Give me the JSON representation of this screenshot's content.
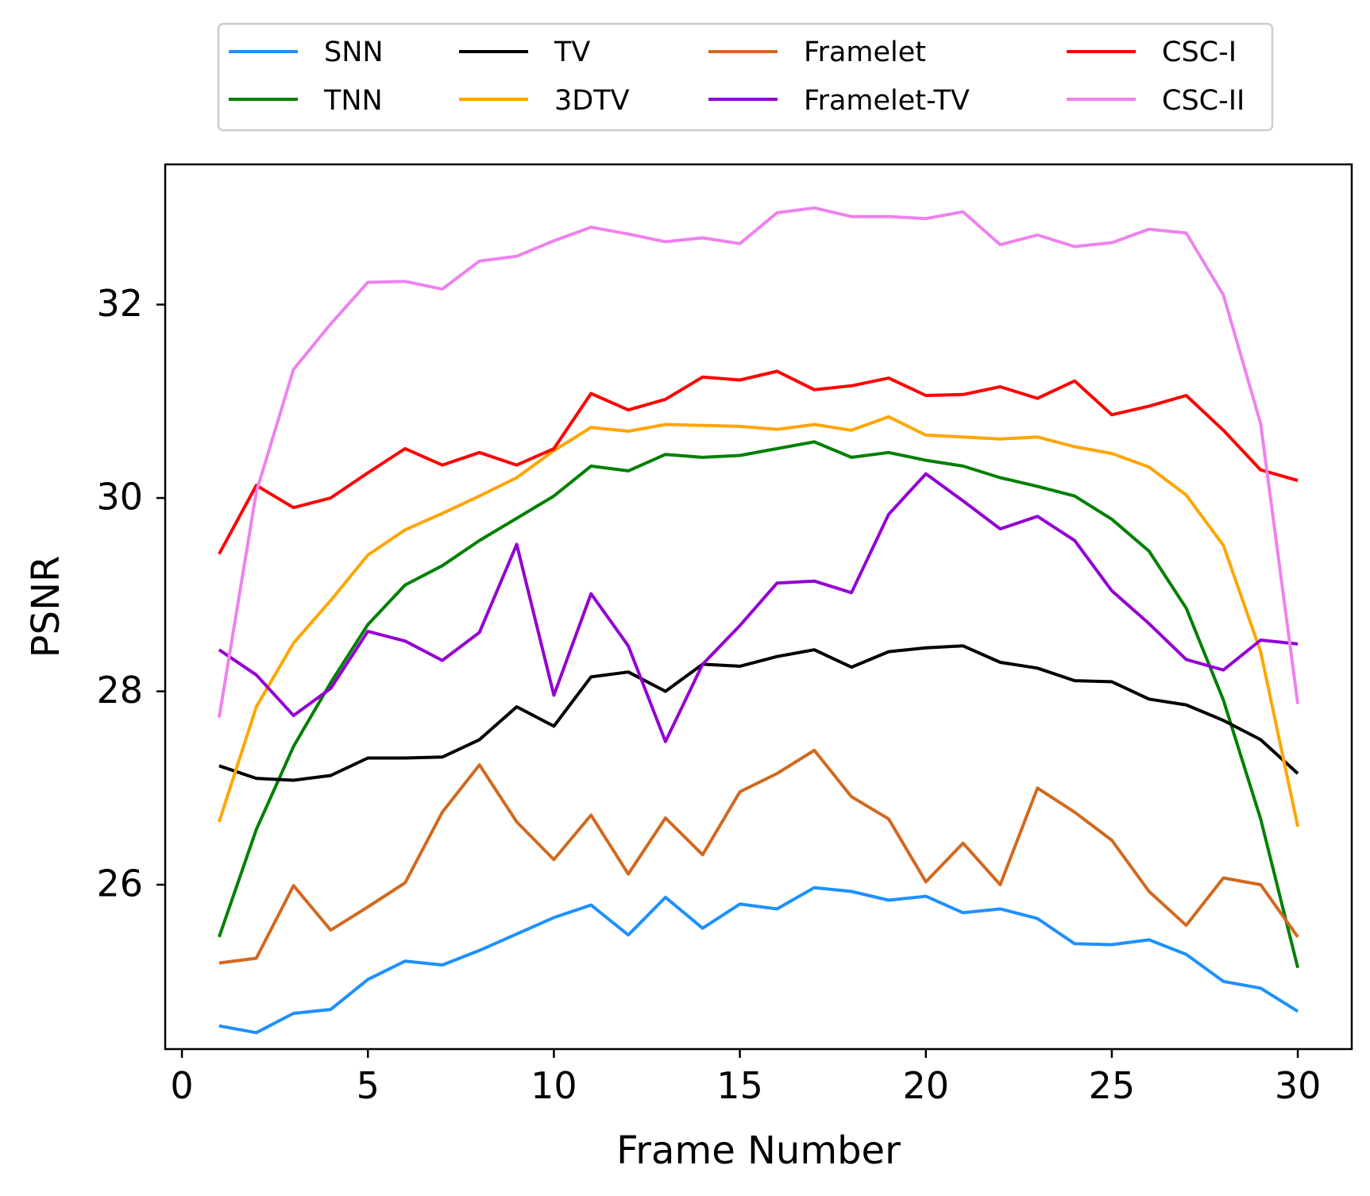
{
  "chart_data": {
    "type": "line",
    "title": "",
    "xlabel": "Frame Number",
    "ylabel": "PSNR",
    "xlim": [
      -0.45,
      31.45
    ],
    "ylim": [
      24.3,
      33.45
    ],
    "xticks": [
      0,
      5,
      10,
      15,
      20,
      25,
      30
    ],
    "yticks": [
      26,
      28,
      30,
      32
    ],
    "grid": false,
    "legend_position": "top-center",
    "legend_columns": 4,
    "x": [
      1,
      2,
      3,
      4,
      5,
      6,
      7,
      8,
      9,
      10,
      11,
      12,
      13,
      14,
      15,
      16,
      17,
      18,
      19,
      20,
      21,
      22,
      23,
      24,
      25,
      26,
      27,
      28,
      29,
      30
    ],
    "series": [
      {
        "name": "SNN",
        "color": "#1e90ff",
        "values": [
          24.54,
          24.47,
          24.67,
          24.71,
          25.02,
          25.21,
          25.17,
          25.32,
          25.49,
          25.66,
          25.79,
          25.48,
          25.87,
          25.55,
          25.8,
          25.75,
          25.97,
          25.93,
          25.84,
          25.88,
          25.71,
          25.75,
          25.65,
          25.39,
          25.38,
          25.43,
          25.28,
          25.0,
          24.93,
          24.69
        ]
      },
      {
        "name": "TNN",
        "color": "#008000",
        "values": [
          25.46,
          26.57,
          27.43,
          28.09,
          28.69,
          29.1,
          29.3,
          29.56,
          29.79,
          30.02,
          30.33,
          30.28,
          30.45,
          30.42,
          30.44,
          30.51,
          30.58,
          30.42,
          30.47,
          30.39,
          30.33,
          30.21,
          30.12,
          30.02,
          29.78,
          29.45,
          28.86,
          27.91,
          26.68,
          25.14
        ]
      },
      {
        "name": "TV",
        "color": "#000000",
        "values": [
          27.23,
          27.1,
          27.08,
          27.13,
          27.31,
          27.31,
          27.32,
          27.5,
          27.84,
          27.64,
          28.15,
          28.2,
          28.0,
          28.28,
          28.26,
          28.36,
          28.43,
          28.25,
          28.41,
          28.45,
          28.47,
          28.3,
          28.24,
          28.11,
          28.1,
          27.92,
          27.86,
          27.7,
          27.5,
          27.15
        ]
      },
      {
        "name": "3DTV",
        "color": "#ffa500",
        "values": [
          26.65,
          27.84,
          28.5,
          28.94,
          29.41,
          29.67,
          29.84,
          30.02,
          30.21,
          30.49,
          30.73,
          30.69,
          30.76,
          30.75,
          30.74,
          30.71,
          30.76,
          30.7,
          30.84,
          30.65,
          30.63,
          30.61,
          30.63,
          30.53,
          30.46,
          30.32,
          30.03,
          29.51,
          28.41,
          26.6
        ]
      },
      {
        "name": "Framelet",
        "color": "#d2691e",
        "values": [
          25.19,
          25.24,
          25.99,
          25.53,
          25.77,
          26.02,
          26.75,
          27.24,
          26.65,
          26.26,
          26.72,
          26.11,
          26.69,
          26.31,
          26.96,
          27.15,
          27.39,
          26.91,
          26.68,
          26.03,
          26.43,
          26.0,
          27.0,
          26.75,
          26.46,
          25.93,
          25.58,
          26.07,
          26.0,
          25.46
        ]
      },
      {
        "name": "Framelet-TV",
        "color": "#9400d3",
        "values": [
          28.43,
          28.17,
          27.75,
          28.03,
          28.62,
          28.52,
          28.32,
          28.61,
          29.52,
          27.96,
          29.01,
          28.47,
          27.48,
          28.28,
          28.68,
          29.12,
          29.14,
          29.02,
          29.83,
          30.25,
          29.97,
          29.68,
          29.81,
          29.56,
          29.04,
          28.7,
          28.33,
          28.22,
          28.53,
          28.49
        ]
      },
      {
        "name": "CSC-I",
        "color": "#ff0000",
        "values": [
          29.42,
          30.13,
          29.9,
          30.0,
          30.26,
          30.51,
          30.34,
          30.47,
          30.34,
          30.51,
          31.08,
          30.91,
          31.02,
          31.25,
          31.22,
          31.31,
          31.12,
          31.16,
          31.24,
          31.06,
          31.07,
          31.15,
          31.03,
          31.21,
          30.86,
          30.95,
          31.06,
          30.7,
          30.29,
          30.18
        ]
      },
      {
        "name": "CSC-II",
        "color": "#ee82ee",
        "values": [
          27.73,
          30.06,
          31.33,
          31.8,
          32.23,
          32.24,
          32.16,
          32.45,
          32.5,
          32.66,
          32.8,
          32.73,
          32.65,
          32.69,
          32.63,
          32.95,
          33.0,
          32.91,
          32.91,
          32.89,
          32.96,
          32.62,
          32.72,
          32.6,
          32.64,
          32.78,
          32.74,
          32.1,
          30.77,
          27.87
        ]
      }
    ]
  }
}
